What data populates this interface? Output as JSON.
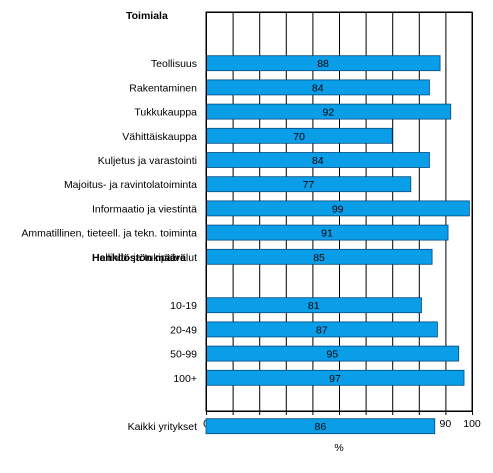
{
  "chart_data": {
    "type": "bar",
    "orientation": "horizontal",
    "groups": [
      {
        "label": "Toimiala",
        "row": 0
      },
      {
        "label": "Henkilöstön määrä",
        "row": 10
      }
    ],
    "rows": [
      {
        "label": "Teollisuus",
        "value": 88,
        "row": 1
      },
      {
        "label": "Rakentaminen",
        "value": 84,
        "row": 2
      },
      {
        "label": "Tukkukauppa",
        "value": 92,
        "row": 3
      },
      {
        "label": "Vähittäiskauppa",
        "value": 70,
        "row": 4
      },
      {
        "label": "Kuljetus ja varastointi",
        "value": 84,
        "row": 5
      },
      {
        "label": "Majoitus- ja ravintolatoiminta",
        "value": 77,
        "row": 6
      },
      {
        "label": "Informaatio ja viestintä",
        "value": 99,
        "row": 7
      },
      {
        "label": "Ammatillinen, tieteell. ja tekn. toiminta",
        "value": 91,
        "row": 8
      },
      {
        "label": "Hallinto- ja tukipalvelut",
        "value": 85,
        "row": 9
      },
      {
        "label": "10-19",
        "value": 81,
        "row": 11
      },
      {
        "label": "20-49",
        "value": 87,
        "row": 12
      },
      {
        "label": "50-99",
        "value": 95,
        "row": 13
      },
      {
        "label": "100+",
        "value": 97,
        "row": 14
      },
      {
        "label": "Kaikki yritykset",
        "value": 86,
        "row": 16
      }
    ],
    "xlabel": "%",
    "xlim": [
      0,
      100
    ],
    "xticks": [
      0,
      10,
      20,
      30,
      40,
      50,
      60,
      70,
      80,
      90,
      100
    ],
    "grid": "vertical",
    "bar_color": "#0a9de8",
    "bar_edge": "#004a80",
    "label_color": "#000000"
  }
}
